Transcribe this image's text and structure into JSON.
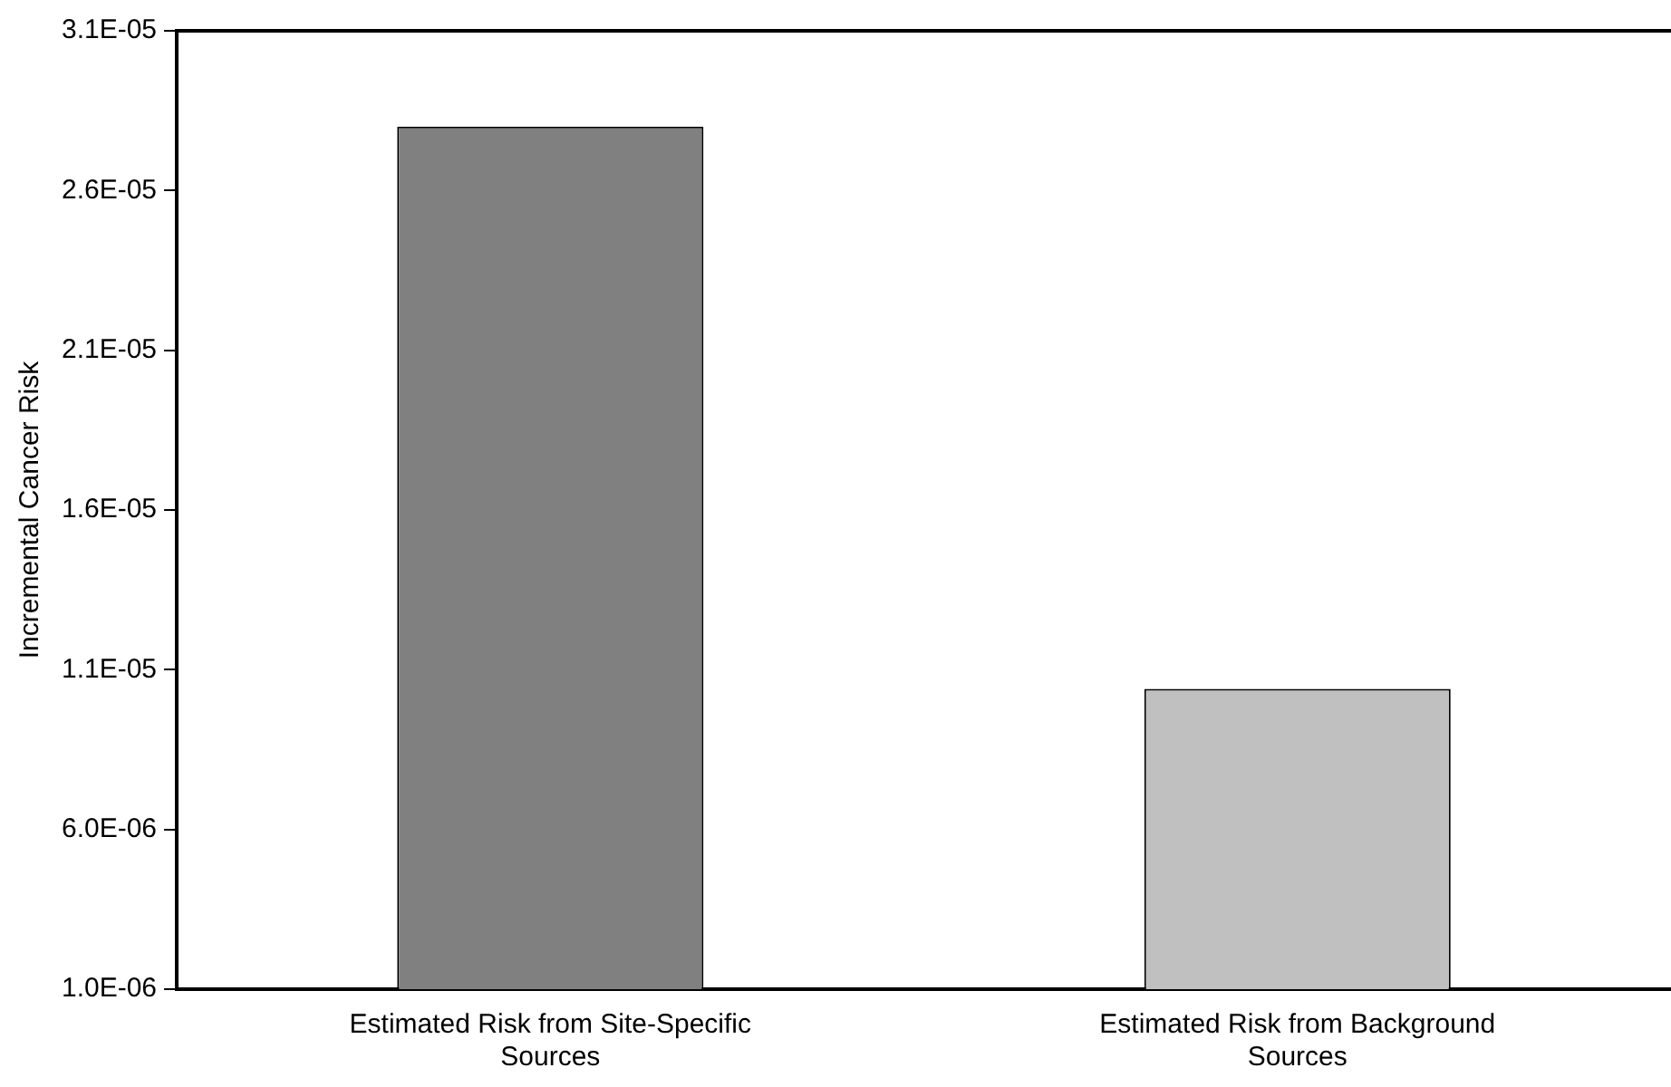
{
  "chart_data": {
    "type": "bar",
    "ylabel": "Incremental Cancer Risk",
    "categories": [
      "Estimated Risk from Site-Specific Sources",
      "Estimated Risk from Background Sources"
    ],
    "values": [
      2.8e-05,
      1.04e-05
    ],
    "colors": [
      "#808080",
      "#c0c0c0"
    ],
    "ylim": [
      1e-06,
      3.1e-05
    ],
    "yticks": [
      {
        "value": 1e-06,
        "label": "1.0E-06"
      },
      {
        "value": 6e-06,
        "label": "6.0E-06"
      },
      {
        "value": 1.1e-05,
        "label": "1.1E-05"
      },
      {
        "value": 1.6e-05,
        "label": "1.6E-05"
      },
      {
        "value": 2.1e-05,
        "label": "2.1E-05"
      },
      {
        "value": 2.6e-05,
        "label": "2.6E-05"
      },
      {
        "value": 3.1e-05,
        "label": "3.1E-05"
      }
    ],
    "grid": false,
    "legend": false
  }
}
